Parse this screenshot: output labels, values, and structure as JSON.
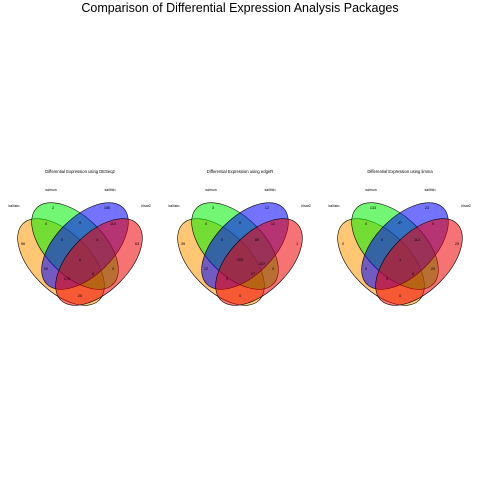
{
  "title": "Comparison of Differential Expression Analysis Packages",
  "colors": {
    "kallisto": "#FF9900",
    "salmon": "#00EE00",
    "sailfish": "#0000FF",
    "hisat2": "#EE0000"
  },
  "diagrams": [
    {
      "title": "Differential Expression using DESeq2",
      "sets": [
        "kallisto",
        "salmon",
        "sailfish",
        "hisat2"
      ],
      "regions": {
        "kallisto_only": "96",
        "salmon_only": "2",
        "sailfish_only": "186",
        "hisat2_only": "63",
        "kallisto_salmon": "0",
        "salmon_sailfish": "0",
        "sailfish_hisat2": "110",
        "kallisto_salmon_sailfish": "0",
        "salmon_sailfish_hisat2": "4",
        "kallisto_sailfish": "90",
        "salmon_hisat2": "0",
        "all_four": "0",
        "kallisto_sailfish_hisat2": "170",
        "kallisto_salmon_hisat2": "0",
        "kallisto_hisat2": "25"
      }
    },
    {
      "title": "Differential Expression using edgeR",
      "sets": [
        "kallisto",
        "salmon",
        "sailfish",
        "hisat2"
      ],
      "regions": {
        "kallisto_only": "39",
        "salmon_only": "3",
        "sailfish_only": "12",
        "hisat2_only": "1",
        "kallisto_salmon": "0",
        "salmon_sailfish": "0",
        "sailfish_hisat2": "12",
        "kallisto_salmon_sailfish": "0",
        "salmon_sailfish_hisat2": "89",
        "kallisto_sailfish": "22",
        "salmon_hisat2": "0",
        "all_four": "103",
        "kallisto_sailfish_hisat2": "0",
        "kallisto_salmon_hisat2": "17",
        "kallisto_hisat2": "0",
        "salmon_hisat2_extra": "107"
      }
    },
    {
      "title": "Differential Expression using limma",
      "sets": [
        "kallisto",
        "salmon",
        "sailfish",
        "hisat2"
      ],
      "regions": {
        "kallisto_only": "0",
        "salmon_only": "133",
        "sailfish_only": "23",
        "hisat2_only": "29",
        "kallisto_salmon": "0",
        "salmon_sailfish": "47",
        "sailfish_hisat2": "0",
        "kallisto_salmon_sailfish": "0",
        "salmon_sailfish_hisat2": "113",
        "kallisto_sailfish": "0",
        "salmon_hisat2": "20",
        "all_four": "1",
        "kallisto_sailfish_hisat2": "0",
        "kallisto_salmon_hisat2": "0",
        "kallisto_hisat2": "0"
      }
    }
  ]
}
